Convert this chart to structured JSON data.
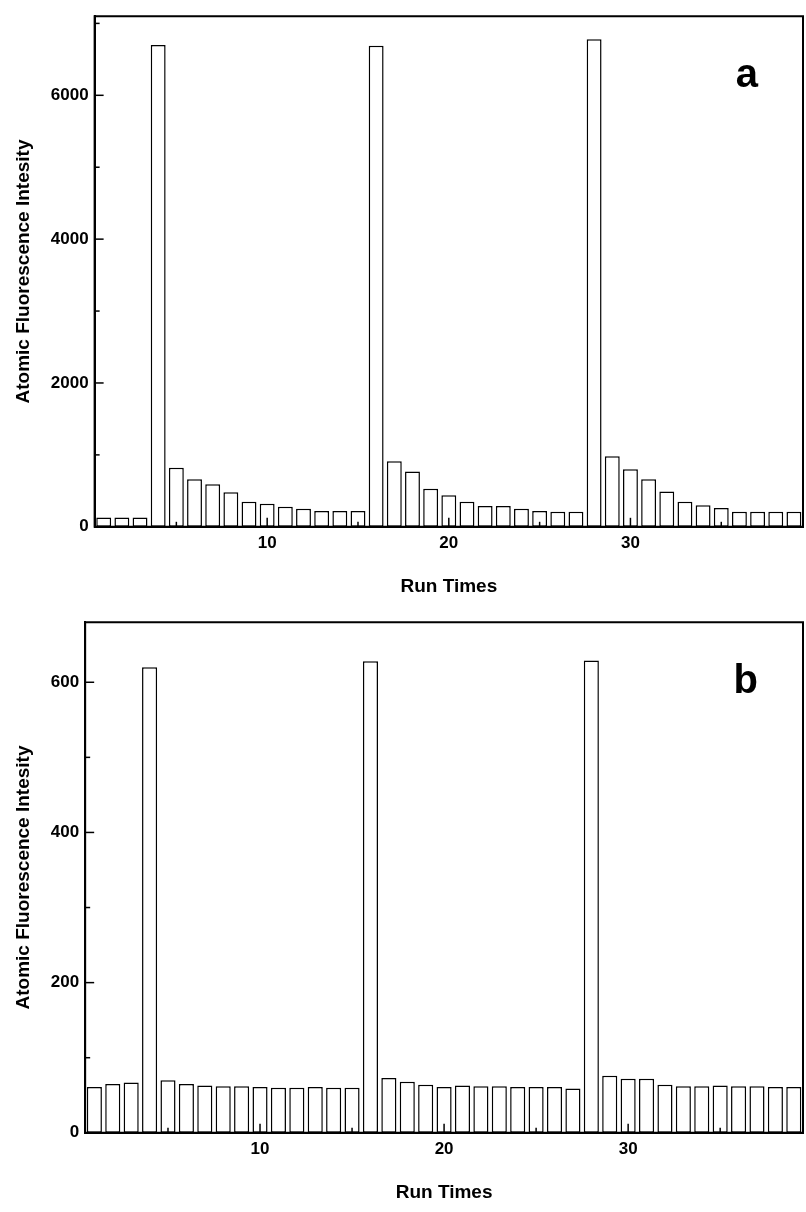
{
  "chart_data": [
    {
      "type": "bar",
      "ylabel": "Atomic Fluorescence Intesity",
      "xlabel": "Run Times",
      "annotations": [
        "a"
      ],
      "grid": false,
      "legend": false,
      "x": [
        1,
        2,
        3,
        4,
        5,
        6,
        7,
        8,
        9,
        10,
        11,
        12,
        13,
        14,
        15,
        16,
        17,
        18,
        19,
        20,
        21,
        22,
        23,
        24,
        25,
        26,
        27,
        28,
        29,
        30,
        31,
        32,
        33,
        34,
        35,
        36,
        37,
        38,
        39
      ],
      "values": [
        130,
        130,
        130,
        6700,
        820,
        660,
        590,
        480,
        350,
        320,
        280,
        250,
        220,
        220,
        220,
        6690,
        910,
        770,
        530,
        440,
        350,
        290,
        290,
        250,
        220,
        210,
        210,
        6780,
        980,
        800,
        660,
        490,
        350,
        300,
        260,
        210,
        210,
        210,
        210
      ],
      "color": "#ffffff",
      "xlim": [
        0.5,
        39.5
      ],
      "xticks": [
        {
          "value": 5,
          "label": null
        },
        10,
        {
          "value": 15,
          "label": null
        },
        20,
        {
          "value": 25,
          "label": null
        },
        30,
        {
          "value": 35,
          "label": null
        }
      ],
      "ylim": [
        0,
        7100
      ],
      "yticks": [
        0,
        {
          "value": 1000,
          "label": null
        },
        2000,
        {
          "value": 3000,
          "label": null
        },
        4000,
        {
          "value": 5000,
          "label": null
        },
        6000,
        {
          "value": 7000,
          "label": null
        }
      ]
    },
    {
      "type": "bar",
      "ylabel": "Atomic Fluorescence Intesity",
      "xlabel": "Run Times",
      "annotations": [
        "b"
      ],
      "grid": false,
      "legend": false,
      "x": [
        1,
        2,
        3,
        4,
        5,
        6,
        7,
        8,
        9,
        10,
        11,
        12,
        13,
        14,
        15,
        16,
        17,
        18,
        19,
        20,
        21,
        22,
        23,
        24,
        25,
        26,
        27,
        28,
        29,
        30,
        31,
        32,
        33,
        34,
        35,
        36,
        37,
        38,
        39
      ],
      "values": [
        61,
        65,
        67,
        620,
        70,
        65,
        63,
        62,
        62,
        61,
        60,
        60,
        61,
        60,
        60,
        628,
        73,
        68,
        64,
        61,
        63,
        62,
        62,
        61,
        61,
        61,
        59,
        629,
        76,
        72,
        72,
        64,
        62,
        62,
        63,
        62,
        62,
        61,
        61
      ],
      "color": "#ffffff",
      "xlim": [
        0.5,
        39.5
      ],
      "xticks": [
        {
          "value": 5,
          "label": null
        },
        10,
        {
          "value": 15,
          "label": null
        },
        20,
        {
          "value": 25,
          "label": null
        },
        30,
        {
          "value": 35,
          "label": null
        }
      ],
      "ylim": [
        0,
        680
      ],
      "yticks": [
        0,
        {
          "value": 100,
          "label": null
        },
        200,
        {
          "value": 300,
          "label": null
        },
        400,
        {
          "value": 500,
          "label": null
        },
        600
      ]
    }
  ]
}
